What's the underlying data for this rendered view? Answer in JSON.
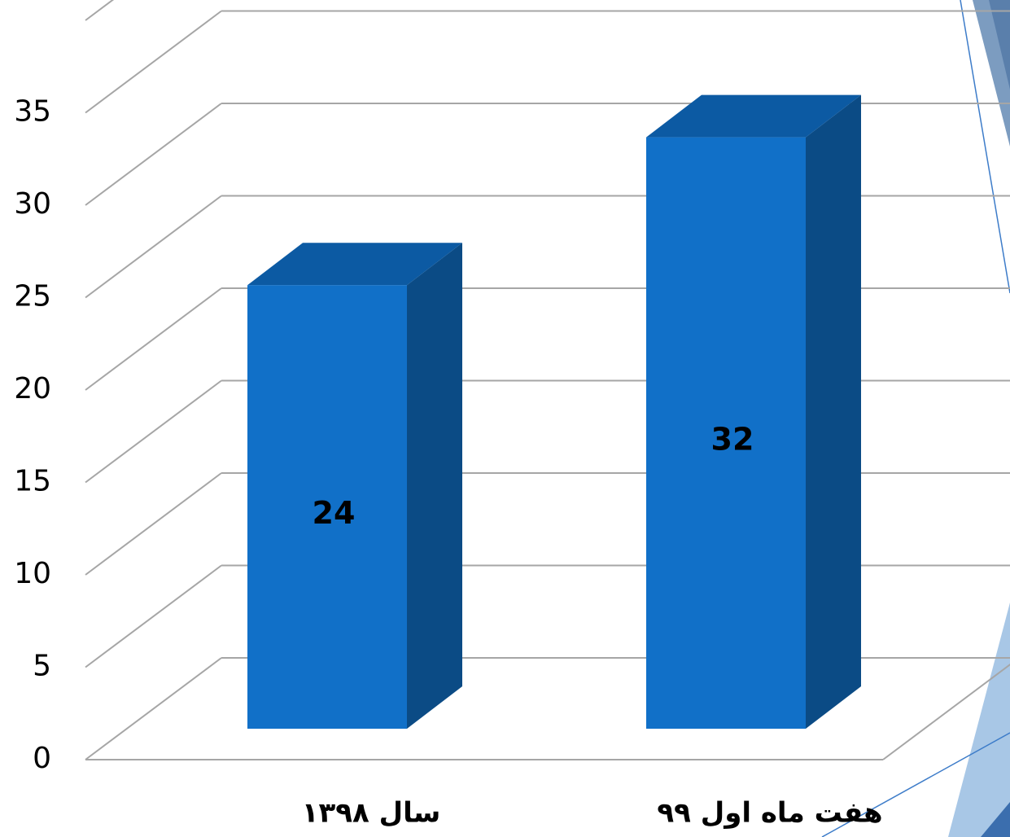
{
  "chart_data": {
    "type": "bar3d",
    "categories": [
      "سال ۱۳۹۸",
      "هفت ماه اول ۹۹"
    ],
    "values": [
      24,
      32
    ],
    "color": "#1170c8",
    "ylim": [
      0,
      40
    ],
    "yticks": [
      0,
      5,
      10,
      15,
      20,
      25,
      30,
      35
    ],
    "grid": true
  }
}
